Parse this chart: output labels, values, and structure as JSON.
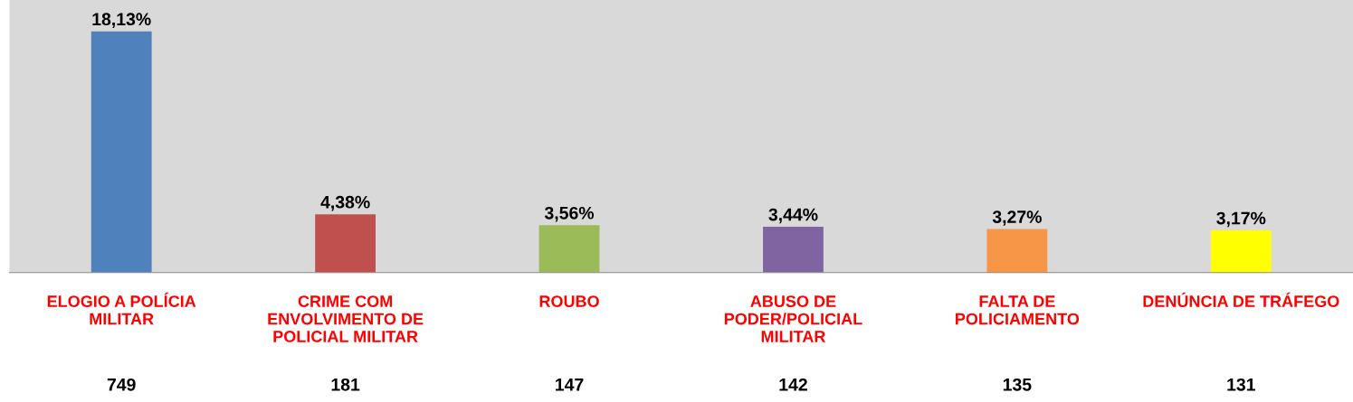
{
  "chart_data": {
    "type": "bar",
    "categories": [
      "ELOGIO A POLÍCIA\nMILITAR",
      "CRIME COM\nENVOLVIMENTO DE\nPOLICIAL MILITAR",
      "ROUBO",
      "ABUSO DE\nPODER/POLICIAL\nMILITAR",
      "FALTA DE\nPOLICIAMENTO",
      "DENÚNCIA DE TRÁFEGO"
    ],
    "values": [
      18.13,
      4.38,
      3.56,
      3.44,
      3.27,
      3.17
    ],
    "value_labels": [
      "18,13%",
      "4,38%",
      "3,56%",
      "3,44%",
      "3,27%",
      "3,17%"
    ],
    "colors": [
      "#4f81bd",
      "#c0504d",
      "#9bbb59",
      "#8064a2",
      "#f79646",
      "#ffff00"
    ],
    "annotations": [
      "749",
      "181",
      "147",
      "142",
      "135",
      "131"
    ],
    "grid": false,
    "legend": false
  }
}
